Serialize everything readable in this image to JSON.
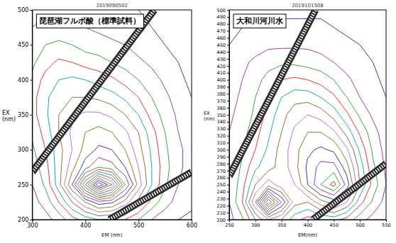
{
  "chart_data": [
    {
      "type": "contour",
      "title": "琵琶湖フルボ酸（標準試料）",
      "subtitle": "2019090502",
      "x_label": "EM (nm)",
      "y_label": "EX (nm)",
      "xlim": [
        300,
        600
      ],
      "ylim": [
        200,
        500
      ],
      "xticks": [
        300,
        400,
        500,
        600
      ],
      "yticks": [
        200,
        250,
        300,
        350,
        400,
        450,
        500
      ],
      "x": [
        300,
        325,
        350,
        375,
        400,
        425,
        450,
        475,
        500,
        525,
        550,
        575,
        600
      ],
      "y": [
        200,
        225,
        250,
        275,
        300,
        325,
        350,
        375,
        400,
        425,
        450,
        475,
        500
      ],
      "z": [
        [
          5,
          8,
          12,
          18,
          22,
          25,
          24,
          20,
          15,
          10,
          7,
          5,
          4
        ],
        [
          8,
          12,
          20,
          30,
          40,
          48,
          46,
          38,
          28,
          18,
          12,
          8,
          6
        ],
        [
          10,
          16,
          28,
          45,
          70,
          95,
          80,
          55,
          38,
          25,
          16,
          10,
          7
        ],
        [
          12,
          18,
          28,
          38,
          48,
          55,
          52,
          45,
          35,
          25,
          17,
          11,
          8
        ],
        [
          14,
          20,
          28,
          35,
          42,
          46,
          45,
          40,
          32,
          24,
          16,
          11,
          8
        ],
        [
          16,
          22,
          30,
          36,
          40,
          42,
          40,
          36,
          30,
          22,
          15,
          10,
          7
        ],
        [
          18,
          24,
          30,
          34,
          36,
          36,
          34,
          30,
          25,
          18,
          13,
          9,
          6
        ],
        [
          18,
          24,
          28,
          30,
          30,
          29,
          27,
          24,
          20,
          15,
          11,
          8,
          5
        ],
        [
          16,
          22,
          25,
          26,
          25,
          23,
          21,
          18,
          15,
          12,
          9,
          6,
          4
        ],
        [
          14,
          18,
          21,
          20,
          18,
          17,
          15,
          13,
          11,
          9,
          7,
          5,
          4
        ],
        [
          12,
          15,
          16,
          15,
          13,
          12,
          11,
          10,
          8,
          7,
          5,
          4,
          3
        ],
        [
          10,
          12,
          12,
          11,
          10,
          9,
          8,
          7,
          6,
          5,
          4,
          3,
          3
        ],
        [
          8,
          9,
          9,
          8,
          7,
          7,
          6,
          5,
          5,
          4,
          3,
          3,
          2
        ]
      ],
      "levels": [
        5,
        10,
        15,
        20,
        25,
        30,
        35,
        40,
        45,
        50,
        55,
        60,
        65,
        70,
        75,
        80,
        85,
        90,
        95
      ],
      "colors": [
        "#2020c0",
        "#a020a0",
        "#20a020",
        "#e02020",
        "#00a0a0",
        "#806020",
        "#c060c0",
        "#608000",
        "#2020c0",
        "#a020a0",
        "#20a020",
        "#e02020",
        "#00a0a0",
        "#806020",
        "#c060c0",
        "#608000",
        "#2020c0",
        "#a020a0",
        "#20a020"
      ],
      "bands": [
        {
          "x": [
            300,
            530
          ],
          "y": [
            268,
            500
          ]
        },
        {
          "x": [
            445,
            600
          ],
          "y": [
            200,
            268
          ]
        }
      ]
    },
    {
      "type": "contour",
      "title": "大和川河川水",
      "subtitle": "2019101508",
      "x_label": "EM(nm)",
      "y_label": "EX (nm)",
      "xlim": [
        250,
        550
      ],
      "ylim": [
        200,
        500
      ],
      "xticks": [
        250,
        300,
        350,
        400,
        450,
        500,
        550
      ],
      "yticks": [
        200,
        210,
        220,
        230,
        240,
        250,
        260,
        270,
        280,
        290,
        300,
        310,
        320,
        330,
        340,
        350,
        360,
        370,
        380,
        390,
        400,
        410,
        420,
        430,
        440,
        450,
        460,
        470,
        480,
        490,
        500
      ],
      "x": [
        250,
        275,
        300,
        325,
        350,
        375,
        400,
        425,
        450,
        475,
        500,
        525,
        550
      ],
      "y": [
        200,
        225,
        250,
        275,
        300,
        325,
        350,
        375,
        400,
        425,
        450,
        475,
        500
      ],
      "z": [
        [
          8,
          14,
          25,
          35,
          30,
          22,
          18,
          20,
          22,
          18,
          12,
          8,
          5
        ],
        [
          10,
          20,
          40,
          70,
          50,
          32,
          30,
          38,
          42,
          35,
          22,
          14,
          8
        ],
        [
          10,
          18,
          30,
          38,
          32,
          35,
          45,
          55,
          62,
          48,
          30,
          18,
          10
        ],
        [
          10,
          16,
          24,
          28,
          32,
          38,
          46,
          52,
          52,
          42,
          28,
          16,
          9
        ],
        [
          10,
          14,
          20,
          26,
          32,
          38,
          44,
          46,
          44,
          36,
          24,
          14,
          8
        ],
        [
          10,
          13,
          18,
          24,
          30,
          36,
          40,
          40,
          36,
          28,
          19,
          12,
          7
        ],
        [
          9,
          12,
          16,
          22,
          28,
          33,
          35,
          33,
          28,
          21,
          14,
          9,
          6
        ],
        [
          8,
          11,
          15,
          20,
          25,
          28,
          28,
          25,
          21,
          15,
          10,
          7,
          5
        ],
        [
          7,
          10,
          13,
          17,
          20,
          21,
          20,
          18,
          15,
          11,
          8,
          6,
          4
        ],
        [
          6,
          9,
          11,
          13,
          14,
          14,
          13,
          12,
          10,
          8,
          6,
          5,
          3
        ],
        [
          5,
          7,
          8,
          9,
          9,
          9,
          9,
          8,
          7,
          6,
          5,
          4,
          3
        ],
        [
          4,
          5,
          6,
          6,
          6,
          6,
          6,
          6,
          5,
          4,
          4,
          3,
          2
        ],
        [
          3,
          4,
          4,
          4,
          4,
          4,
          4,
          4,
          4,
          3,
          3,
          2,
          2
        ]
      ],
      "levels": [
        5,
        10,
        15,
        20,
        25,
        30,
        35,
        40,
        45,
        50,
        55,
        60,
        65
      ],
      "colors": [
        "#2020c0",
        "#a020a0",
        "#20a020",
        "#e02020",
        "#00a0a0",
        "#806020",
        "#c060c0",
        "#608000",
        "#2020c0",
        "#a020a0",
        "#20a020",
        "#e02020",
        "#00a0a0"
      ],
      "bands": [
        {
          "x": [
            250,
            415
          ],
          "y": [
            262,
            500
          ]
        },
        {
          "x": [
            410,
            550
          ],
          "y": [
            200,
            280
          ]
        }
      ]
    }
  ]
}
